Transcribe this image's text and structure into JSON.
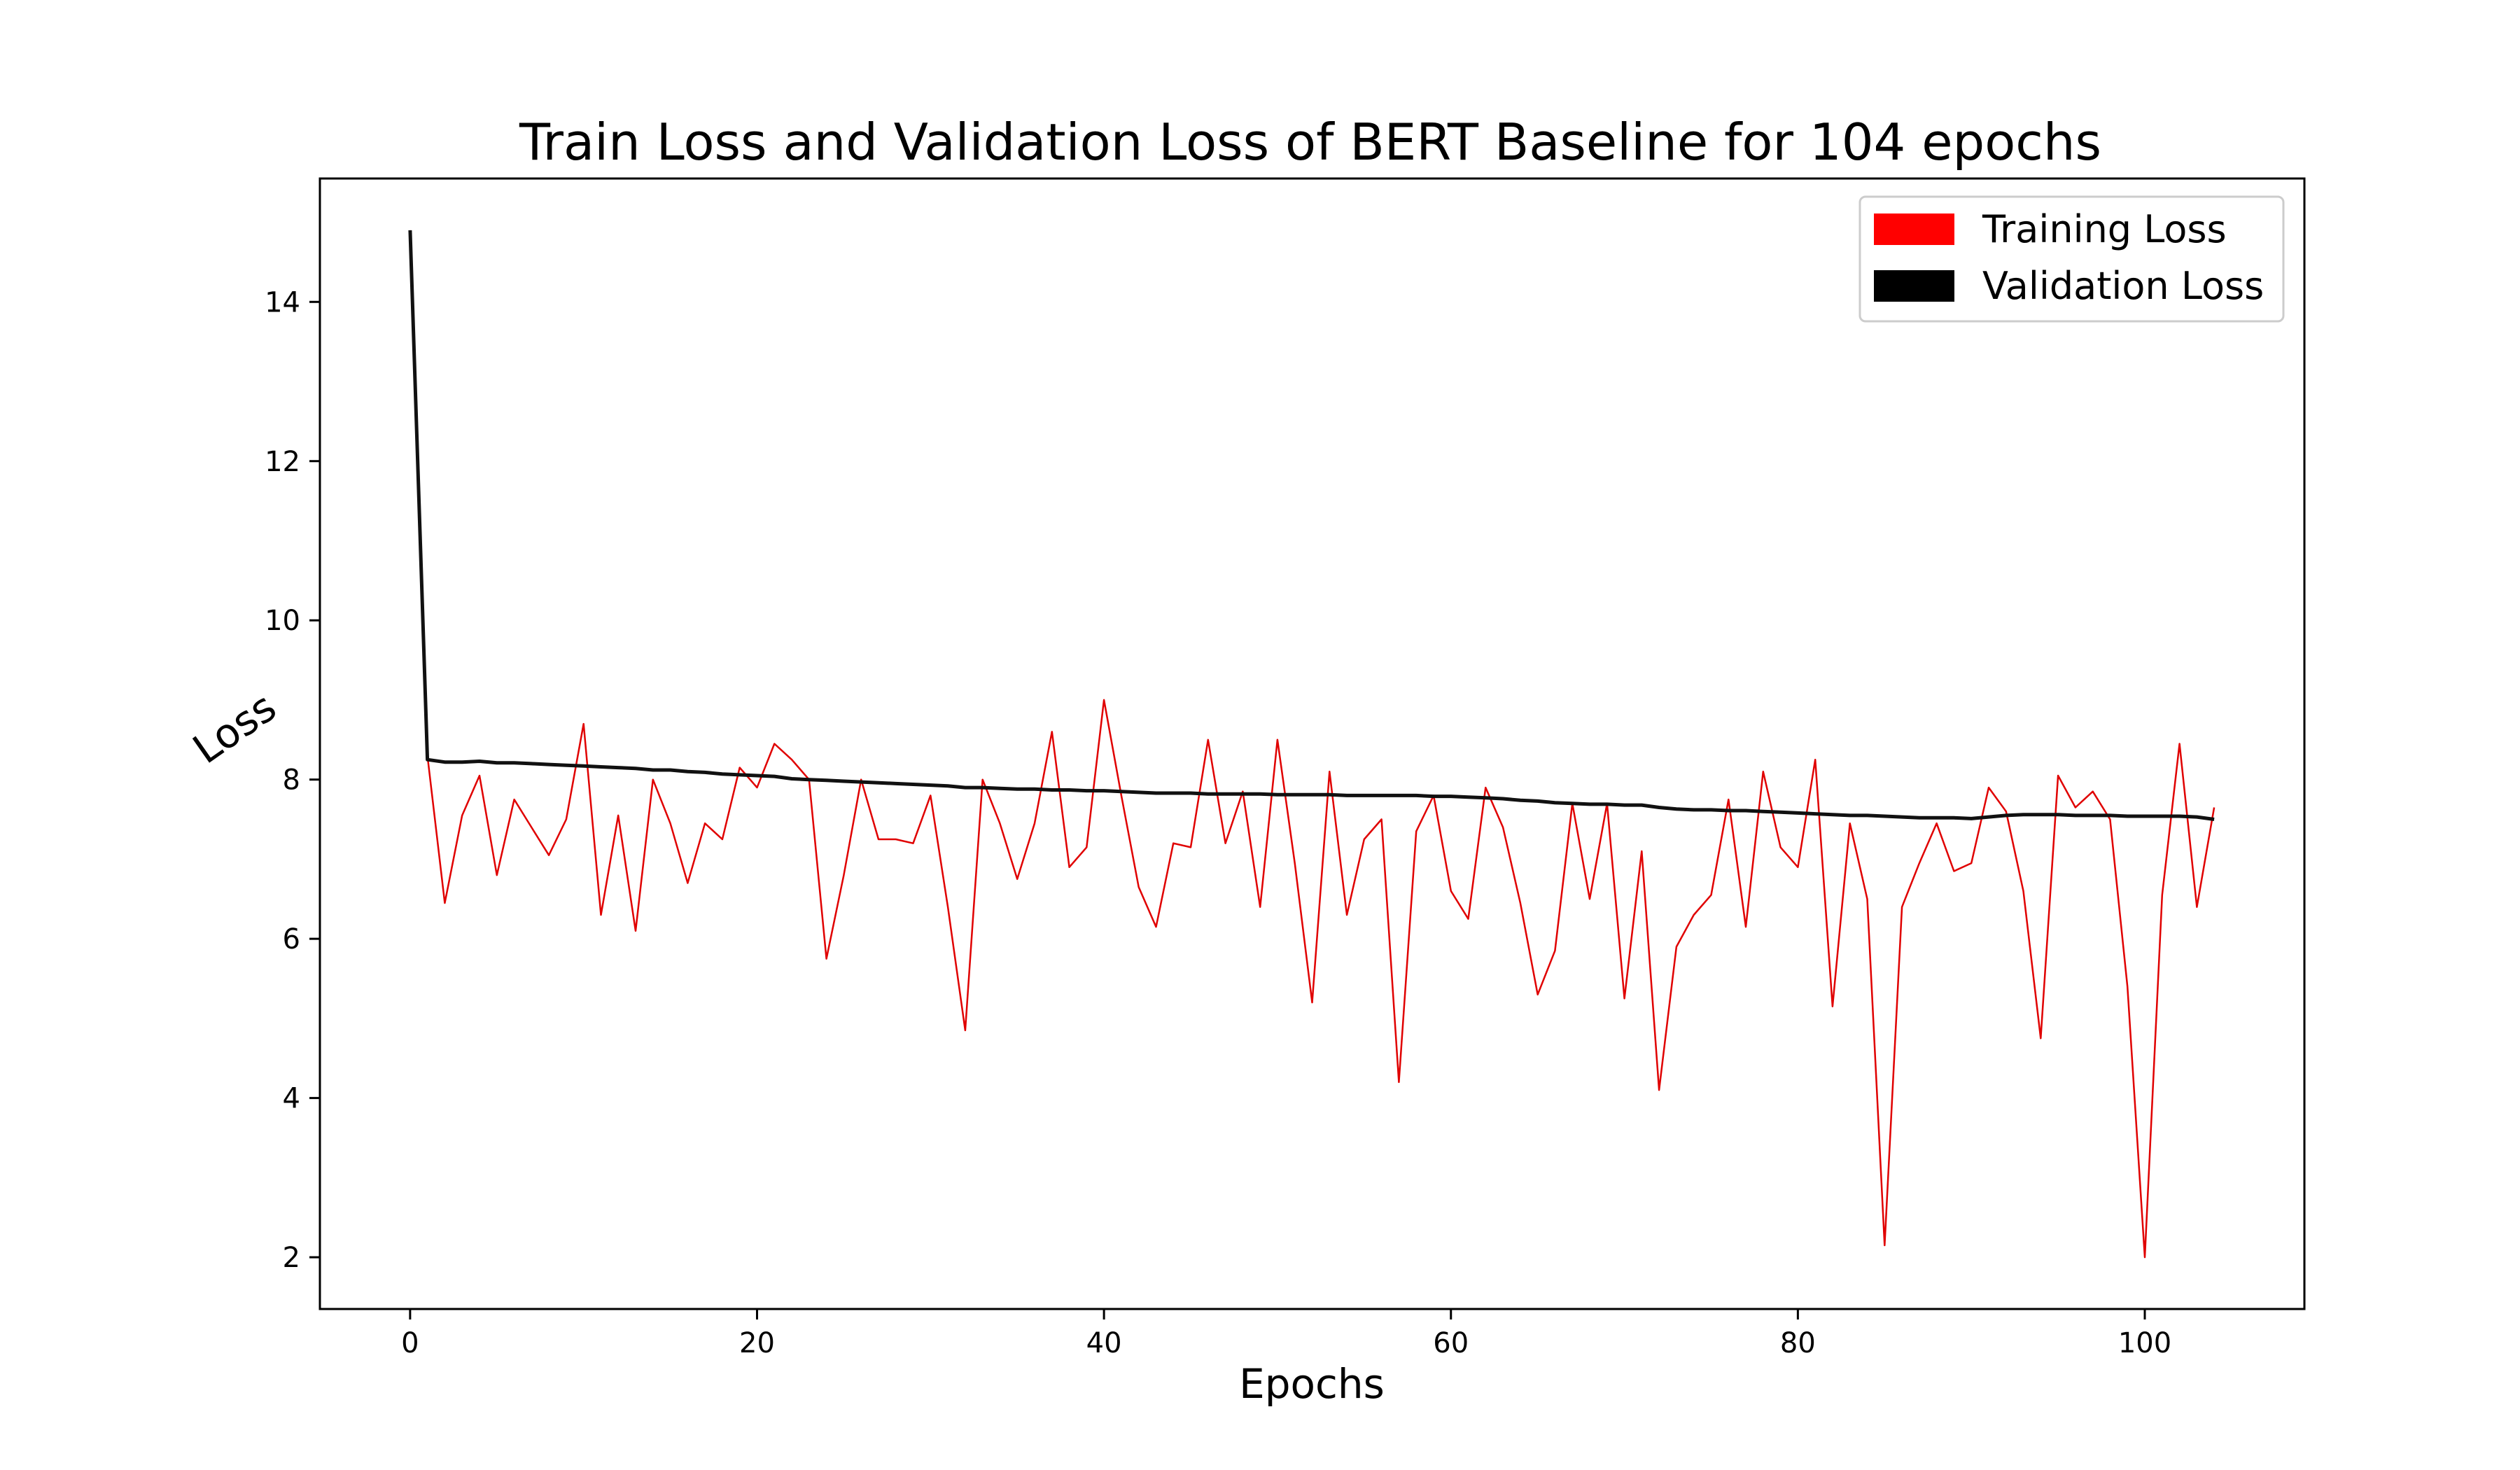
{
  "chart_data": {
    "type": "line",
    "title": "Train Loss and Validation Loss of BERT Baseline for 104 epochs",
    "xlabel": "Epochs",
    "ylabel": "Loss",
    "xlim": [
      -5.2,
      109.2
    ],
    "ylim": [
      1.35,
      15.55
    ],
    "xticks": [
      0,
      20,
      40,
      60,
      80,
      100
    ],
    "yticks": [
      2,
      4,
      6,
      8,
      10,
      12,
      14
    ],
    "grid": false,
    "legend_position": "upper-right",
    "colors": {
      "Training Loss": "#ff0000",
      "Validation Loss": "#000000"
    },
    "series": [
      {
        "name": "Training Loss",
        "x": [
          0,
          1,
          2,
          3,
          4,
          5,
          6,
          7,
          8,
          9,
          10,
          11,
          12,
          13,
          14,
          15,
          16,
          17,
          18,
          19,
          20,
          21,
          22,
          23,
          24,
          25,
          26,
          27,
          28,
          29,
          30,
          31,
          32,
          33,
          34,
          35,
          36,
          37,
          38,
          39,
          40,
          41,
          42,
          43,
          44,
          45,
          46,
          47,
          48,
          49,
          50,
          51,
          52,
          53,
          54,
          55,
          56,
          57,
          58,
          59,
          60,
          61,
          62,
          63,
          64,
          65,
          66,
          67,
          68,
          69,
          70,
          71,
          72,
          73,
          74,
          75,
          76,
          77,
          78,
          79,
          80,
          81,
          82,
          83,
          84,
          85,
          86,
          87,
          88,
          89,
          90,
          91,
          92,
          93,
          94,
          95,
          96,
          97,
          98,
          99,
          100,
          101,
          102,
          103,
          104
        ],
        "values": [
          14.9,
          8.3,
          6.45,
          7.55,
          8.05,
          6.8,
          7.75,
          7.4,
          7.05,
          7.5,
          8.7,
          6.3,
          7.55,
          6.1,
          8.0,
          7.45,
          6.7,
          7.45,
          7.25,
          8.15,
          7.9,
          8.45,
          8.25,
          8.0,
          5.75,
          6.8,
          8.0,
          7.25,
          7.25,
          7.2,
          7.8,
          6.4,
          4.85,
          8.0,
          7.45,
          6.75,
          7.45,
          8.6,
          6.9,
          7.15,
          9.0,
          7.8,
          6.65,
          6.15,
          7.2,
          7.15,
          8.5,
          7.2,
          7.85,
          6.4,
          8.5,
          6.95,
          5.2,
          8.1,
          6.3,
          7.25,
          7.5,
          4.2,
          7.35,
          7.8,
          6.6,
          6.25,
          7.9,
          7.4,
          6.45,
          5.3,
          5.85,
          7.7,
          6.5,
          7.7,
          5.25,
          7.1,
          4.1,
          5.9,
          6.3,
          6.55,
          7.75,
          6.15,
          8.1,
          7.15,
          6.9,
          8.25,
          5.15,
          7.45,
          6.5,
          2.15,
          6.4,
          6.95,
          7.45,
          6.85,
          6.95,
          7.9,
          7.6,
          6.6,
          4.75,
          8.05,
          7.65,
          7.85,
          7.5,
          5.4,
          2.0,
          6.55,
          8.45,
          6.4,
          7.65
        ]
      },
      {
        "name": "Validation Loss",
        "x": [
          0,
          1,
          2,
          3,
          4,
          5,
          6,
          7,
          8,
          9,
          10,
          11,
          12,
          13,
          14,
          15,
          16,
          17,
          18,
          19,
          20,
          21,
          22,
          23,
          24,
          25,
          26,
          27,
          28,
          29,
          30,
          31,
          32,
          33,
          34,
          35,
          36,
          37,
          38,
          39,
          40,
          41,
          42,
          43,
          44,
          45,
          46,
          47,
          48,
          49,
          50,
          51,
          52,
          53,
          54,
          55,
          56,
          57,
          58,
          59,
          60,
          61,
          62,
          63,
          64,
          65,
          66,
          67,
          68,
          69,
          70,
          71,
          72,
          73,
          74,
          75,
          76,
          77,
          78,
          79,
          80,
          81,
          82,
          83,
          84,
          85,
          86,
          87,
          88,
          89,
          90,
          91,
          92,
          93,
          94,
          95,
          96,
          97,
          98,
          99,
          100,
          101,
          102,
          103,
          104
        ],
        "values": [
          14.9,
          8.25,
          8.22,
          8.22,
          8.23,
          8.21,
          8.21,
          8.2,
          8.19,
          8.18,
          8.17,
          8.16,
          8.15,
          8.14,
          8.12,
          8.12,
          8.1,
          8.09,
          8.07,
          8.06,
          8.05,
          8.04,
          8.01,
          8.0,
          7.99,
          7.98,
          7.97,
          7.96,
          7.95,
          7.94,
          7.93,
          7.92,
          7.9,
          7.9,
          7.89,
          7.88,
          7.88,
          7.87,
          7.87,
          7.86,
          7.86,
          7.85,
          7.84,
          7.83,
          7.83,
          7.83,
          7.82,
          7.82,
          7.82,
          7.82,
          7.81,
          7.81,
          7.81,
          7.81,
          7.8,
          7.8,
          7.8,
          7.8,
          7.8,
          7.79,
          7.79,
          7.78,
          7.77,
          7.76,
          7.74,
          7.73,
          7.71,
          7.7,
          7.69,
          7.69,
          7.68,
          7.68,
          7.65,
          7.63,
          7.62,
          7.62,
          7.61,
          7.61,
          7.6,
          7.59,
          7.58,
          7.57,
          7.56,
          7.55,
          7.55,
          7.54,
          7.53,
          7.52,
          7.52,
          7.52,
          7.51,
          7.53,
          7.55,
          7.56,
          7.56,
          7.56,
          7.55,
          7.55,
          7.55,
          7.54,
          7.54,
          7.54,
          7.54,
          7.53,
          7.5
        ]
      }
    ]
  }
}
